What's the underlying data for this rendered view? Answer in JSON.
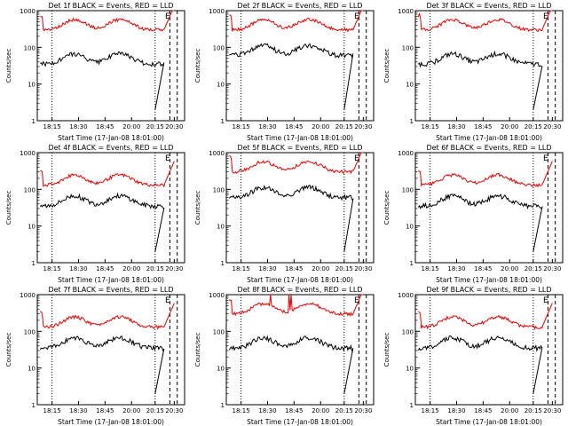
{
  "colors": {
    "events": "#000000",
    "lld": "#e00000",
    "background": "#ffffff"
  },
  "chart_data": {
    "type": "line",
    "y_scale": "log",
    "ylim": [
      1,
      1000
    ],
    "y_ticks": [
      "1",
      "10",
      "100",
      "1000"
    ],
    "x_ticks": [
      "18:15",
      "18:30",
      "18:45",
      "20:00",
      "20:15",
      "20:30"
    ],
    "ylabel": "Counts/sec",
    "xlabel": "Start Time (17-Jan-08 18:01:00)",
    "grid": false,
    "panels": [
      {
        "title": "Det 1f BLACK = Events, RED = LLD",
        "xlabel": "Start Time (17-Jan-08 18:01:00)",
        "corner_label": "E",
        "lld_base": 300,
        "events_base": 35,
        "lld_spike": false
      },
      {
        "title": "Det 2f BLACK = Events, RED = LLD",
        "xlabel": "Start Time (17-Jan-08 18:01:00)",
        "corner_label": "E",
        "lld_base": 300,
        "events_base": 60,
        "lld_spike": false
      },
      {
        "title": "Det 3f BLACK = Events, RED = LLD",
        "xlabel": "Start Time (17-Jan-08 18:01:00)",
        "corner_label": "E",
        "lld_base": 300,
        "events_base": 35,
        "lld_spike": false
      },
      {
        "title": "Det 4f BLACK = Events, RED = LLD",
        "xlabel": "Start Time (17-Jan-08 18:01:00)",
        "corner_label": "E",
        "lld_base": 130,
        "events_base": 35,
        "lld_spike": false
      },
      {
        "title": "Det 5f BLACK = Events, RED = LLD",
        "xlabel": "Start Time (17-Jan-08 18:01:00)",
        "corner_label": "E",
        "lld_base": 300,
        "events_base": 60,
        "lld_spike": false
      },
      {
        "title": "Det 6f BLACK = Events, RED = LLD",
        "xlabel": "Start Time (17-Jan-08 18:01:00)",
        "corner_label": "E",
        "lld_base": 130,
        "events_base": 35,
        "lld_spike": false
      },
      {
        "title": "Det 7f BLACK = Events, RED = LLD",
        "xlabel": "Start Time (17-Jan-08 18:01:00)",
        "corner_label": "E",
        "lld_base": 130,
        "events_base": 35,
        "lld_spike": false
      },
      {
        "title": "Det 8f BLACK = Events, RED = LLD",
        "xlabel": "Start Time (17-Jan-08 18:01:00)",
        "corner_label": "E",
        "lld_base": 300,
        "events_base": 35,
        "lld_spike": true
      },
      {
        "title": "Det 9f BLACK = Events, RED = LLD",
        "xlabel": "Start Time (17-Jan-08 18:01:00)",
        "corner_label": "E",
        "lld_base": 130,
        "events_base": 35,
        "lld_spike": false
      }
    ]
  }
}
